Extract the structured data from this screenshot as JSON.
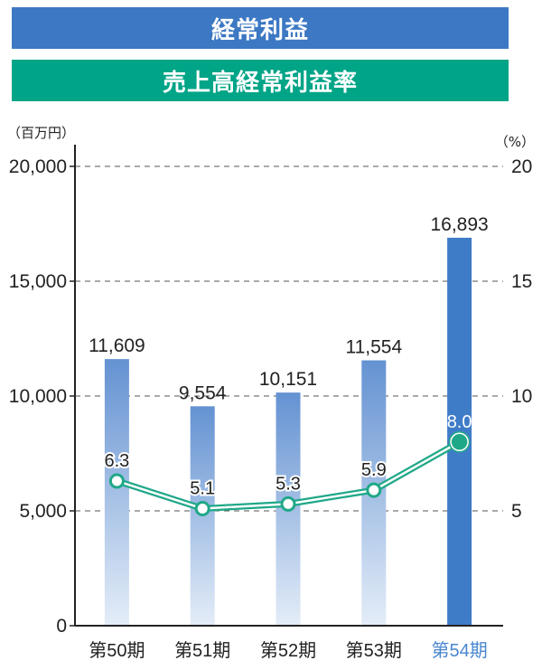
{
  "header": {
    "title_primary": "経常利益",
    "title_secondary": "売上高経常利益率"
  },
  "units": {
    "left": "（百万円）",
    "right": "（%）"
  },
  "colors": {
    "bar_top": "#6492d2",
    "bar_bottom": "#e4edf8",
    "bar_highlight": "#3f7cc8",
    "line": "#1fa888",
    "highlight_label": "#4a86cf",
    "banner_primary": "#3c78c3",
    "banner_secondary": "#00a487"
  },
  "chart_data": {
    "type": "bar",
    "categories": [
      "第50期",
      "第51期",
      "第52期",
      "第53期",
      "第54期"
    ],
    "highlight_index": 4,
    "series": [
      {
        "name": "経常利益",
        "type": "bar",
        "axis": "left",
        "values": [
          11609,
          9554,
          10151,
          11554,
          16893
        ],
        "labels": [
          "11,609",
          "9,554",
          "10,151",
          "11,554",
          "16,893"
        ]
      },
      {
        "name": "売上高経常利益率",
        "type": "line",
        "axis": "right",
        "values": [
          6.3,
          5.1,
          5.3,
          5.9,
          8.0
        ],
        "labels": [
          "6.3",
          "5.1",
          "5.3",
          "5.9",
          "8.0"
        ]
      }
    ],
    "y_left": {
      "ylim": [
        0,
        20000
      ],
      "ticks": [
        0,
        5000,
        10000,
        15000,
        20000
      ],
      "tick_labels": [
        "0",
        "5,000",
        "10,000",
        "15,000",
        "20,000"
      ]
    },
    "y_right": {
      "ylim": [
        0,
        20
      ],
      "ticks": [
        5,
        10,
        15,
        20
      ],
      "tick_labels": [
        "5",
        "10",
        "15",
        "20"
      ]
    },
    "grid": true
  }
}
